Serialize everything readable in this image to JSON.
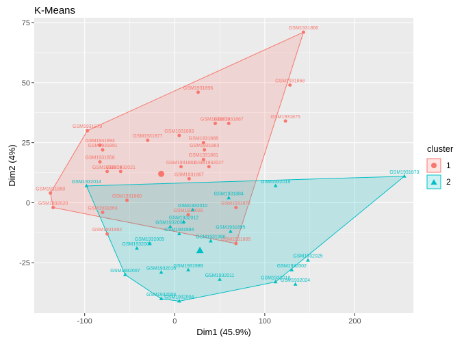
{
  "chart_data": {
    "type": "scatter",
    "title": "K-Means",
    "xlabel": "Dim1 (45.9%)",
    "ylabel": "Dim2 (4%)",
    "xlim": [
      -156,
      265
    ],
    "ylim": [
      -46,
      77
    ],
    "x_ticks": [
      -100,
      0,
      100,
      200
    ],
    "y_ticks": [
      -25,
      0,
      25,
      50,
      75
    ],
    "x_tick_labels": [
      "-100",
      "0",
      "100",
      "200"
    ],
    "y_tick_labels": [
      "-25",
      "0",
      "25",
      "50",
      "75"
    ],
    "grid": true,
    "legend_position": "right",
    "legend": {
      "title": "cluster",
      "entries": [
        "1",
        "2"
      ]
    },
    "colors": {
      "1": "#F8766D",
      "2": "#00BFC4",
      "panel": "#EBEBEB",
      "grid": "#ffffff"
    },
    "series": [
      {
        "name": "1",
        "hull": [
          [
            -138,
            4
          ],
          [
            -135,
            -2
          ],
          [
            68,
            -17
          ],
          [
            143,
            71
          ],
          [
            -97,
            30
          ]
        ],
        "center": [
          -15,
          12
        ],
        "points": [
          {
            "label": "GSM1931866",
            "x": 143,
            "y": 71
          },
          {
            "label": "GSM1931868",
            "x": 128,
            "y": 49
          },
          {
            "label": "GSM1931896",
            "x": 26,
            "y": 46
          },
          {
            "label": "GSM1931875",
            "x": 123,
            "y": 34
          },
          {
            "label": "GSM1931876",
            "x": 45,
            "y": 33
          },
          {
            "label": "GSM1931887",
            "x": 60,
            "y": 33
          },
          {
            "label": "GSM1931879",
            "x": -97,
            "y": 30
          },
          {
            "label": "GSM1931883",
            "x": 5,
            "y": 28
          },
          {
            "label": "GSM1931877",
            "x": -30,
            "y": 26
          },
          {
            "label": "GSM1931893",
            "x": -83,
            "y": 24
          },
          {
            "label": "GSM1931888",
            "x": 32,
            "y": 25
          },
          {
            "label": "GSM1931891",
            "x": -80,
            "y": 22
          },
          {
            "label": "GSM1931863",
            "x": 33,
            "y": 22
          },
          {
            "label": "GSM1931858",
            "x": -83,
            "y": 17
          },
          {
            "label": "GSM1931881",
            "x": 32,
            "y": 18
          },
          {
            "label": "GSM1931882",
            "x": 7,
            "y": 15
          },
          {
            "label": "GSM1932027",
            "x": 38,
            "y": 15
          },
          {
            "label": "GSM1932021",
            "x": -60,
            "y": 13
          },
          {
            "label": "GSM1931874",
            "x": -75,
            "y": 13
          },
          {
            "label": "GSM1931867",
            "x": 16,
            "y": 10
          },
          {
            "label": "GSM1931890",
            "x": -138,
            "y": 4
          },
          {
            "label": "GSM1932020",
            "x": -135,
            "y": -2
          },
          {
            "label": "GSM1931860",
            "x": -53,
            "y": 1
          },
          {
            "label": "GSM1931872",
            "x": 68,
            "y": -2
          },
          {
            "label": "GSM1932028",
            "x": 15,
            "y": -5
          },
          {
            "label": "GSM1931863",
            "x": -80,
            "y": -4
          },
          {
            "label": "GSM1931885",
            "x": 68,
            "y": -17
          },
          {
            "label": "GSM1931992",
            "x": -75,
            "y": -13
          }
        ]
      },
      {
        "name": "2",
        "hull": [
          [
            -98,
            7
          ],
          [
            255,
            11
          ],
          [
            112,
            -33
          ],
          [
            5,
            -41
          ],
          [
            -15,
            -40
          ],
          [
            -55,
            -30
          ]
        ],
        "center": [
          28,
          -20
        ],
        "points": [
          {
            "label": "GSM1931873",
            "x": 255,
            "y": 11
          },
          {
            "label": "GSM1932019",
            "x": 112,
            "y": 7
          },
          {
            "label": "GSM1931884",
            "x": 60,
            "y": 2
          },
          {
            "label": "GSM1932010",
            "x": 20,
            "y": -3
          },
          {
            "label": "GSM1932025",
            "x": 148,
            "y": -24
          },
          {
            "label": "GSM1932002",
            "x": 130,
            "y": -28
          },
          {
            "label": "GSM1932024",
            "x": 134,
            "y": -34
          },
          {
            "label": "GSM1932018",
            "x": 112,
            "y": -33
          },
          {
            "label": "GSM1932011",
            "x": 50,
            "y": -32
          },
          {
            "label": "GSM1932016",
            "x": -15,
            "y": -29
          },
          {
            "label": "GSM1931989",
            "x": 15,
            "y": -28
          },
          {
            "label": "GSM1932007",
            "x": -55,
            "y": -30
          },
          {
            "label": "GSM1932008",
            "x": -15,
            "y": -40
          },
          {
            "label": "GSM1932004",
            "x": 5,
            "y": -41
          },
          {
            "label": "GSM1931990",
            "x": 40,
            "y": -16
          },
          {
            "label": "GSM1931895",
            "x": 62,
            "y": -12
          },
          {
            "label": "GSM1932006",
            "x": -42,
            "y": -19
          },
          {
            "label": "GSM1932005",
            "x": -28,
            "y": -17
          },
          {
            "label": "GSM1932014",
            "x": -98,
            "y": 7
          },
          {
            "label": "GSM1932009",
            "x": -5,
            "y": -10
          },
          {
            "label": "GSM1932012",
            "x": 10,
            "y": -8
          },
          {
            "label": "GSM1931994",
            "x": 5,
            "y": -13
          }
        ]
      }
    ]
  }
}
